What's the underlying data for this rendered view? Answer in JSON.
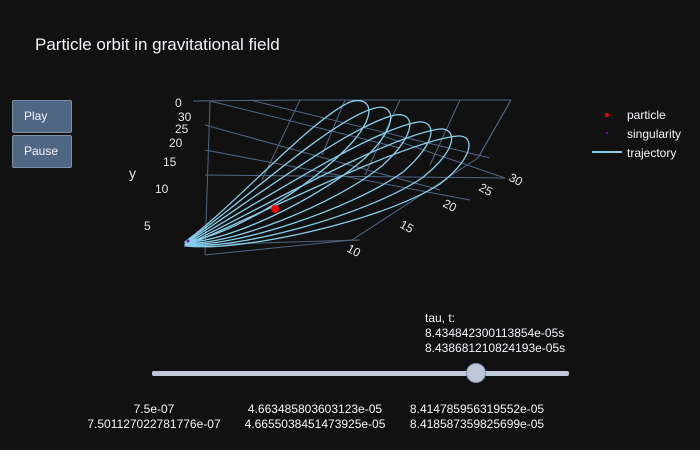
{
  "title": "Particle orbit in gravitational field",
  "buttons": {
    "play": "Play",
    "pause": "Pause"
  },
  "scene": {
    "y_axis_title": "y",
    "y_ticks": [
      "0",
      "30",
      "25",
      "20",
      "15",
      "10",
      "5"
    ],
    "x_ticks": [
      "30",
      "25",
      "20",
      "15",
      "10"
    ]
  },
  "legend": [
    {
      "label": "particle",
      "color": "#ff0000",
      "symbol": "dot"
    },
    {
      "label": "singularity",
      "color": "#6a0dad",
      "symbol": "dot"
    },
    {
      "label": "trajectory",
      "color": "#87ceeb",
      "symbol": "line"
    }
  ],
  "slider": {
    "current_prefix": "tau, t:",
    "current_tau": "8.434842300113854e-05s",
    "current_t": "8.438681210824193e-05s",
    "position_fraction": 0.79,
    "steps": [
      {
        "tau": "7.5e-07",
        "t": "7.501127022781776e-07"
      },
      {
        "tau": "4.663485803603123e-05",
        "t": "4.6655038451473925e-05"
      },
      {
        "tau": "8.414785956319552e-05",
        "t": "8.418587359825699e-05"
      }
    ]
  },
  "colors": {
    "background": "#111111",
    "grid": "#506784",
    "trajectory": "#87ceeb",
    "particle": "#ff0000",
    "singularity": "#6a0dad",
    "button": "#506784"
  }
}
